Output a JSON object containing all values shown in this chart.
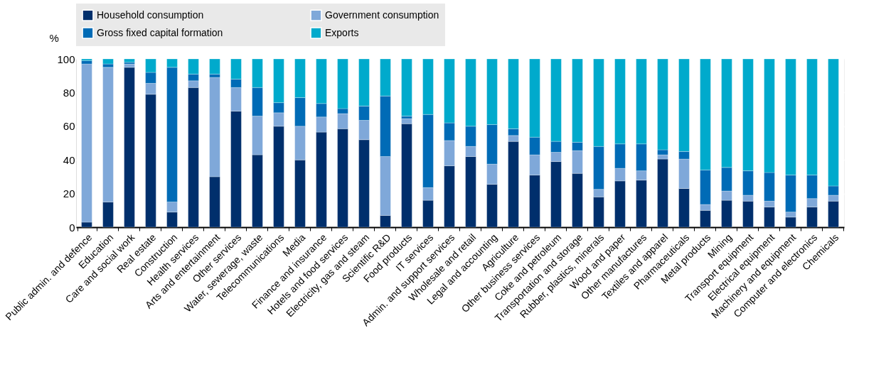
{
  "chart_data": {
    "type": "bar",
    "stacked": true,
    "ylabel": "%",
    "ylim": [
      0,
      100
    ],
    "yticks": [
      0,
      20,
      40,
      60,
      80,
      100
    ],
    "grid": true,
    "legend": "top",
    "categories": [
      "Public admin. and defence",
      "Education",
      "Care and social work",
      "Real estate",
      "Construction",
      "Health services",
      "Arts and entertainment",
      "Other services",
      "Water, sewerage, waste",
      "Telecommunications",
      "Media",
      "Finance and insurance",
      "Hotels and food services",
      "Electricity, gas and steam",
      "Scientific R&D",
      "Food products",
      "IT services",
      "Admin. and support services",
      "Wholesale and retail",
      "Legal and accounting",
      "Agriculture",
      "Other business services",
      "Coke and petroleum",
      "Transportation and storage",
      "Rubber, plastics, minerals",
      "Wood and paper",
      "Other manufactures",
      "Textiles and apparel",
      "Pharmaceuticals",
      "Metal products",
      "Mining",
      "Transport equipment",
      "Electrical equipment",
      "Machinery and equipment",
      "Computer and electronics",
      "Chemicals"
    ],
    "series": [
      {
        "name": "Household consumption",
        "color": "#002f6c",
        "values": [
          3,
          15,
          95,
          79,
          9,
          83,
          30,
          69,
          43,
          60,
          40,
          56.5,
          58.5,
          52,
          7,
          61.5,
          16,
          36.5,
          42,
          25.5,
          51,
          31,
          39,
          32,
          18,
          27.5,
          28,
          40.5,
          23,
          10,
          16,
          15.5,
          12,
          6,
          12,
          15.5
        ]
      },
      {
        "name": "Government consumption",
        "color": "#7fa8d9",
        "values": [
          94,
          80,
          2,
          6.5,
          6,
          4,
          59,
          14,
          23,
          8,
          20,
          9,
          9,
          11.5,
          35,
          3,
          7.5,
          15,
          6,
          12,
          3.5,
          12,
          5.5,
          13.5,
          4.5,
          7.5,
          5.5,
          2.5,
          17.5,
          3.5,
          5.5,
          3.5,
          3.5,
          3,
          5,
          3.5
        ]
      },
      {
        "name": "Gross fixed capital formation",
        "color": "#006bb6",
        "values": [
          2,
          2,
          1,
          6.5,
          80,
          4,
          2,
          5,
          17,
          6,
          17,
          8,
          3,
          8.5,
          36,
          1.5,
          43.5,
          10.5,
          12,
          23.5,
          4,
          10.5,
          6.5,
          5,
          25.5,
          14.5,
          16,
          3,
          4.5,
          20.5,
          14,
          14.5,
          17,
          22,
          14,
          5.5
        ]
      },
      {
        "name": "Exports",
        "color": "#00aacc",
        "values": [
          1,
          3,
          2,
          8,
          5,
          9,
          9,
          12,
          17,
          26,
          23,
          26.5,
          29.5,
          28,
          22,
          34,
          33,
          38,
          40,
          39,
          41.5,
          46.5,
          49,
          49.5,
          52,
          50.5,
          50.5,
          54,
          55,
          66,
          64.5,
          66.5,
          67.5,
          69,
          69,
          75.5
        ]
      }
    ]
  }
}
